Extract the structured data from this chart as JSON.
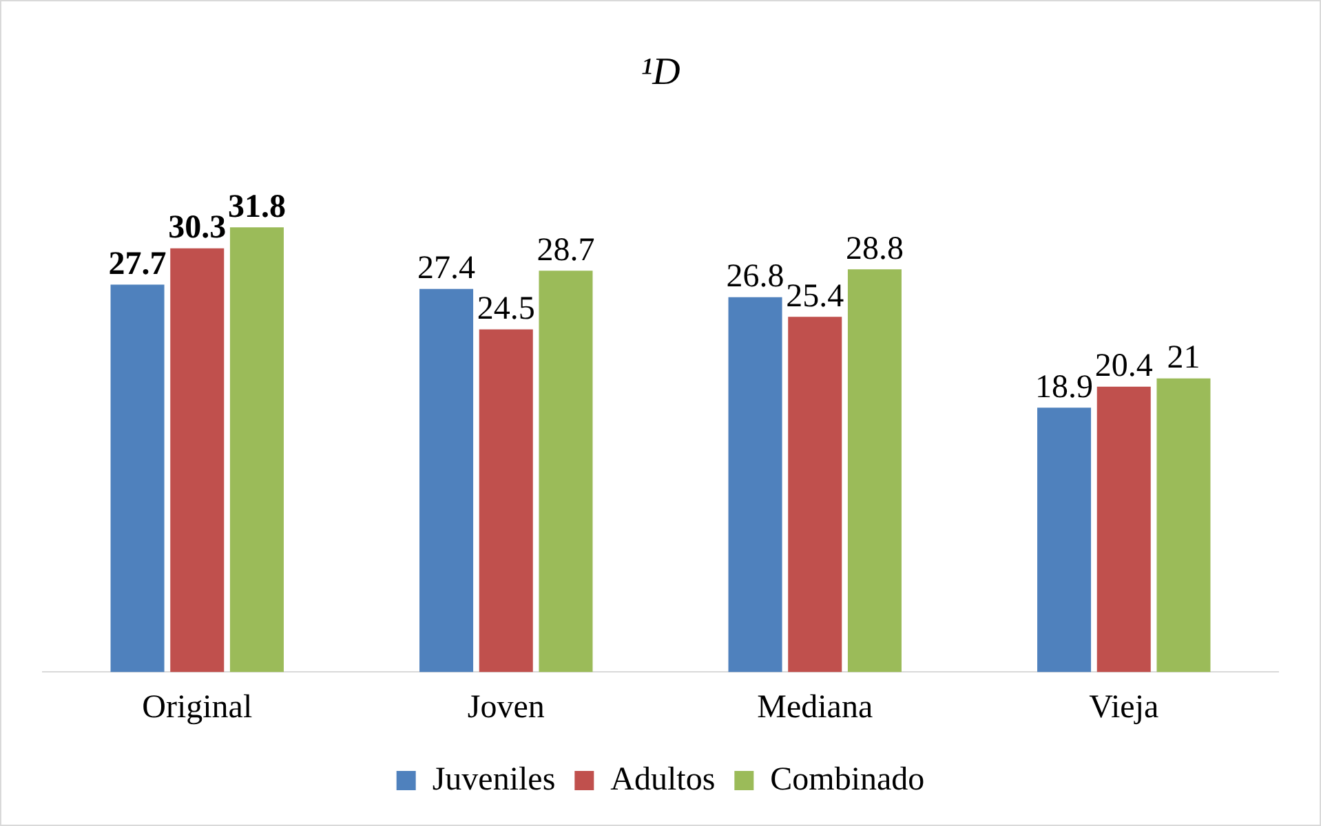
{
  "chart_data": {
    "type": "bar",
    "title": "¹D",
    "categories": [
      "Original",
      "Joven",
      "Mediana",
      "Vieja"
    ],
    "series": [
      {
        "name": "Juveniles",
        "color": "#4f81bd",
        "values": [
          27.7,
          27.4,
          26.8,
          18.9
        ]
      },
      {
        "name": "Adultos",
        "color": "#c0504d",
        "values": [
          30.3,
          24.5,
          25.4,
          20.4
        ]
      },
      {
        "name": "Combinado",
        "color": "#9bbb59",
        "values": [
          31.8,
          28.7,
          28.8,
          21
        ]
      }
    ],
    "data_labels": true,
    "grid": false,
    "legend": "bottom"
  }
}
